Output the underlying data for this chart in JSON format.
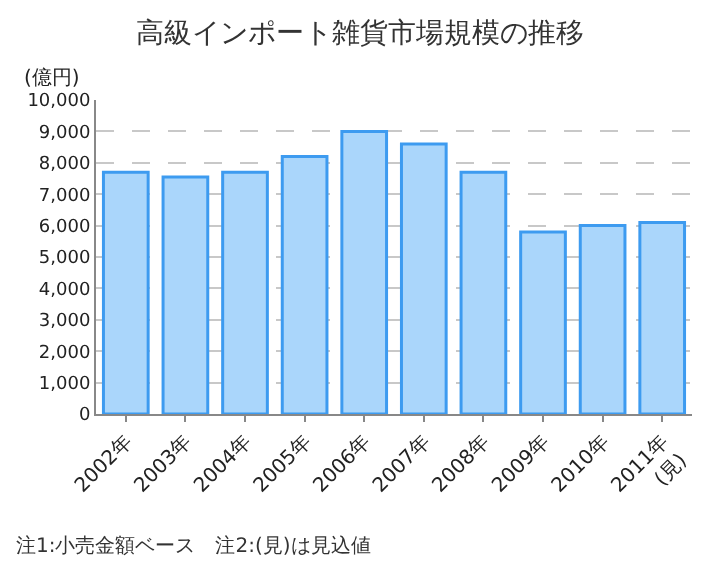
{
  "chart_data": {
    "type": "bar",
    "title": "高級インポート雑貨市場規模の推移",
    "ylabel": "(億円)",
    "categories": [
      "2002年",
      "2003年",
      "2004年",
      "2005年",
      "2006年",
      "2007年",
      "2008年",
      "2009年",
      "2010年",
      "2011年\n(見)"
    ],
    "values": [
      7700,
      7550,
      7700,
      8200,
      9000,
      8600,
      7700,
      5800,
      6000,
      6100
    ],
    "color": "#aad6fb",
    "ylim": [
      0,
      10000
    ],
    "yticks": [
      0,
      {
        "value": 1000,
        "label": "1,000"
      },
      {
        "value": 2000,
        "label": "2,000"
      },
      {
        "value": 3000,
        "label": "3,000"
      },
      {
        "value": 4000,
        "label": "4,000"
      },
      {
        "value": 5000,
        "label": "5,000"
      },
      {
        "value": 6000,
        "label": "6,000"
      },
      {
        "value": 7000,
        "label": "7,000"
      },
      {
        "value": 8000,
        "label": "8,000"
      },
      {
        "value": 9000,
        "label": "9,000"
      },
      {
        "value": 10000,
        "label": "10,000"
      }
    ],
    "grid": "y",
    "annotations": [
      "注1:小売金額ベース　注2:(見)は見込値"
    ]
  }
}
